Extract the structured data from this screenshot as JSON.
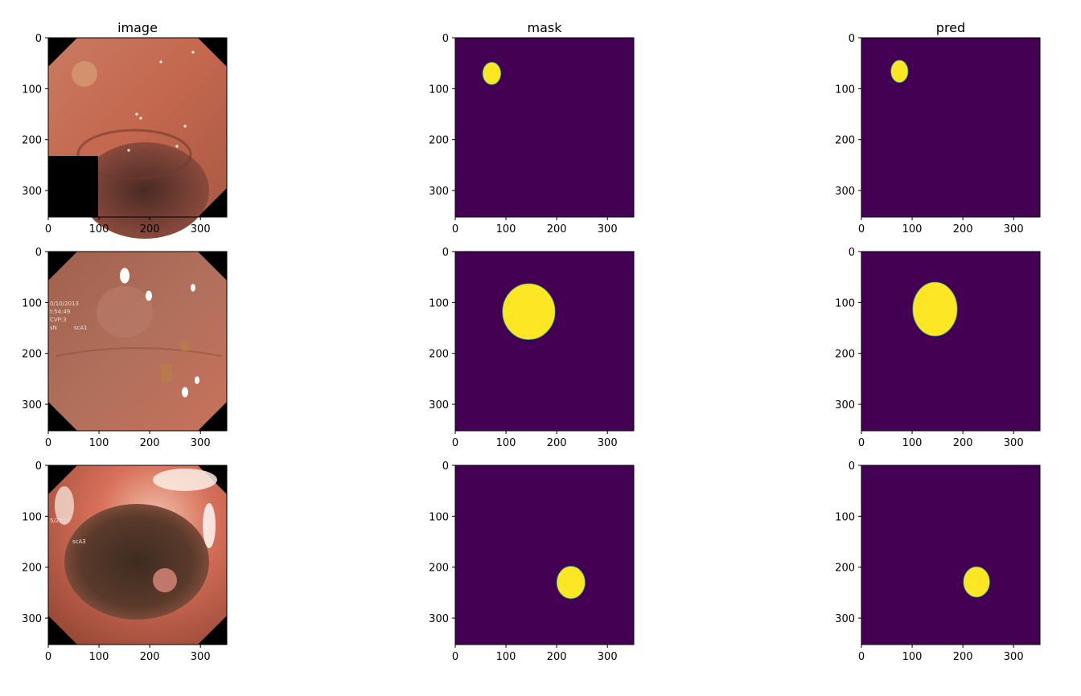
{
  "figure": {
    "column_titles": [
      "image",
      "mask",
      "pred"
    ],
    "tick_values": [
      0,
      100,
      200,
      300
    ],
    "axis_limit": 352,
    "colors": {
      "mask_background": "#440154",
      "mask_foreground": "#fde725",
      "mask_edge": "#21918c",
      "axes_text": "#000000",
      "image_black_border": "#000000"
    }
  },
  "rows": [
    {
      "image": {
        "description_icon": "colonoscopy-frame-icon",
        "overlay_text": [],
        "has_black_patch": true
      },
      "mask": {
        "blob_center": [
          72,
          70
        ],
        "blob_radius": [
          18,
          22
        ]
      },
      "pred": {
        "blob_center": [
          75,
          66
        ],
        "blob_radius": [
          17,
          22
        ]
      }
    },
    {
      "image": {
        "description_icon": "colonoscopy-frame-icon",
        "overlay_text": [
          "0/10/2013",
          "t:54:49",
          "CVP:3",
          "sN",
          "scA1"
        ],
        "has_black_patch": false
      },
      "mask": {
        "blob_center": [
          145,
          118
        ],
        "blob_radius": [
          52,
          55
        ]
      },
      "pred": {
        "blob_center": [
          145,
          113
        ],
        "blob_radius": [
          44,
          53
        ]
      }
    },
    {
      "image": {
        "description_icon": "colonoscopy-frame-icon",
        "overlay_text": [
          "5/2013",
          "scA3"
        ],
        "has_black_patch": false
      },
      "mask": {
        "blob_center": [
          228,
          230
        ],
        "blob_radius": [
          28,
          32
        ]
      },
      "pred": {
        "blob_center": [
          227,
          229
        ],
        "blob_radius": [
          26,
          30
        ]
      }
    }
  ]
}
